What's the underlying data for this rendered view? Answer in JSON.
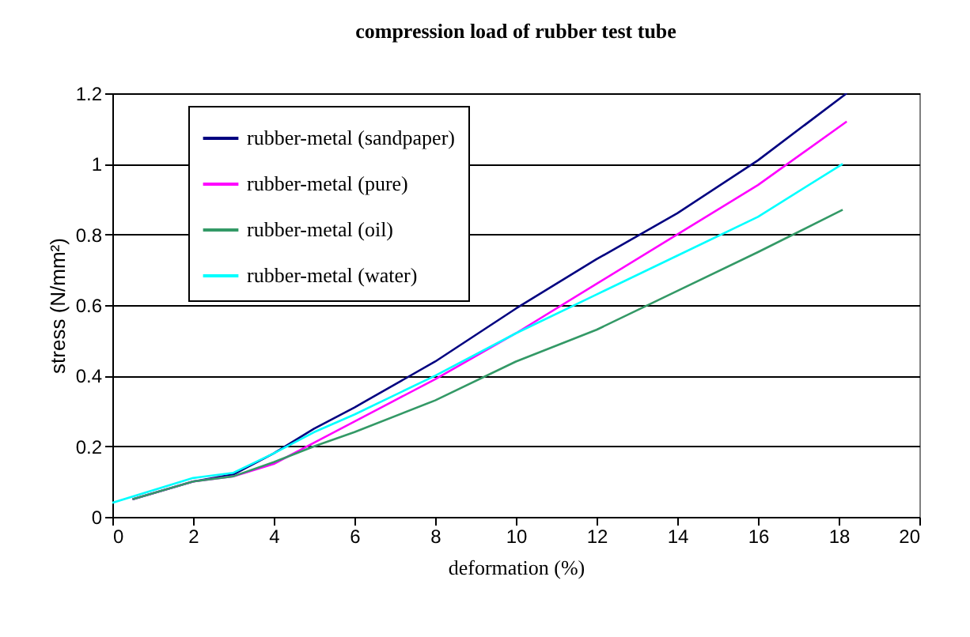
{
  "chart_data": {
    "type": "line",
    "title": "compression load of rubber test tube",
    "xlabel": "deformation (%)",
    "ylabel": "stress (N/mm²)",
    "xlim": [
      0,
      20
    ],
    "xticks": [
      0,
      2,
      4,
      6,
      8,
      10,
      12,
      14,
      16,
      18,
      20
    ],
    "ylim": [
      0,
      1.2
    ],
    "yticks": [
      0,
      0.2,
      0.4,
      0.6,
      0.8,
      1,
      1.2
    ],
    "grid": "y",
    "legend": "top left",
    "series": [
      {
        "name": "rubber-metal (sandpaper)",
        "color": "#000080",
        "x": [
          0.5,
          2,
          3,
          4,
          5,
          6,
          8,
          10,
          12,
          14,
          16,
          18.2
        ],
        "values": [
          0.05,
          0.1,
          0.12,
          0.18,
          0.25,
          0.31,
          0.44,
          0.59,
          0.73,
          0.86,
          1.01,
          1.2
        ]
      },
      {
        "name": "rubber-metal (pure)",
        "color": "#ff00ff",
        "x": [
          0.5,
          2,
          3,
          4,
          5,
          6,
          8,
          10,
          12,
          14,
          16,
          18.2
        ],
        "values": [
          0.05,
          0.1,
          0.115,
          0.15,
          0.21,
          0.27,
          0.39,
          0.52,
          0.66,
          0.8,
          0.94,
          1.12
        ]
      },
      {
        "name": "rubber-metal (oil)",
        "color": "#339966",
        "x": [
          0.5,
          2,
          3,
          4,
          5,
          6,
          8,
          10,
          12,
          14,
          16,
          18.1
        ],
        "values": [
          0.05,
          0.1,
          0.115,
          0.155,
          0.2,
          0.24,
          0.33,
          0.44,
          0.53,
          0.64,
          0.75,
          0.87
        ]
      },
      {
        "name": "rubber-metal (water)",
        "color": "#00ffff",
        "x": [
          0,
          2,
          3,
          4,
          5,
          6,
          8,
          10,
          12,
          14,
          16,
          18.1
        ],
        "values": [
          0.04,
          0.11,
          0.125,
          0.18,
          0.24,
          0.29,
          0.4,
          0.52,
          0.63,
          0.74,
          0.85,
          1.0
        ]
      }
    ]
  }
}
